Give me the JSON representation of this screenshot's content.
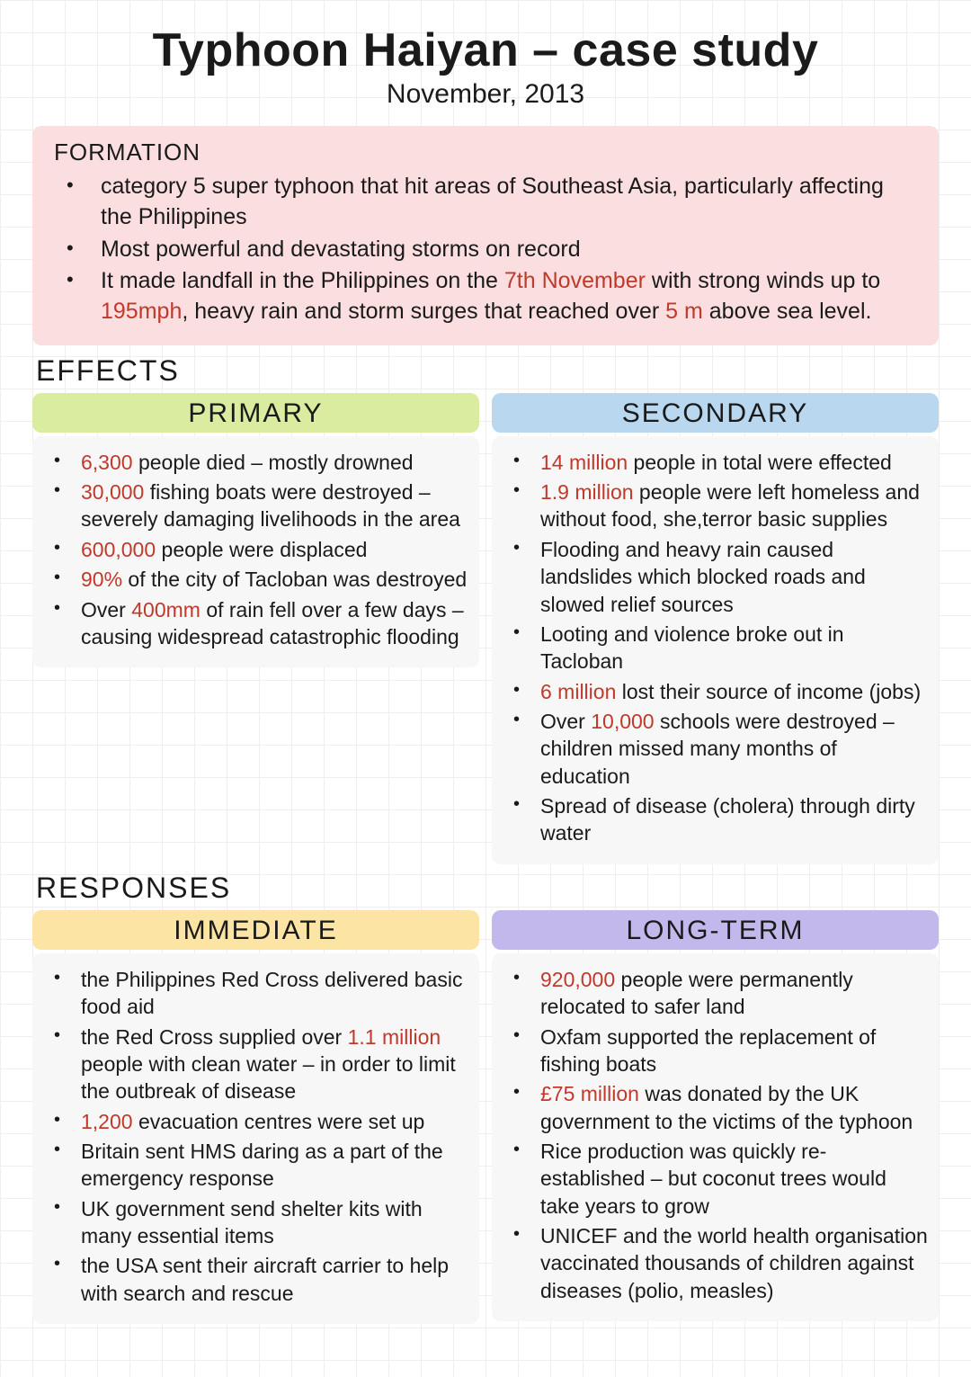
{
  "colors": {
    "highlight": "#c0392b",
    "formation_bg": "#fbdedf",
    "primary_header_bg": "#d9ec9f",
    "secondary_header_bg": "#b9d8ef",
    "immediate_header_bg": "#fce4a5",
    "longterm_header_bg": "#c2b8ec",
    "body_tint_primary": "#f7f7f7",
    "body_tint_secondary": "#f7f7f7",
    "body_tint_immediate": "#f7f7f7",
    "body_tint_longterm": "#f7f7f7"
  },
  "title": "Typhoon Haiyan – case study",
  "subtitle": "November, 2013",
  "formation": {
    "heading": "FORMATION",
    "items": [
      [
        {
          "t": "category 5 super typhoon that hit areas of Southeast Asia, particularly affecting the Philippines"
        }
      ],
      [
        {
          "t": "Most powerful and devastating  storms on record"
        }
      ],
      [
        {
          "t": "It made landfall in the Philippines on the "
        },
        {
          "t": "7th November",
          "hl": true
        },
        {
          "t": " with strong winds up to "
        },
        {
          "t": "195mph",
          "hl": true
        },
        {
          "t": ", heavy rain and storm surges that reached over "
        },
        {
          "t": "5 m",
          "hl": true
        },
        {
          "t": " above sea level."
        }
      ]
    ]
  },
  "effects": {
    "heading": "EFFECTS",
    "primary": {
      "label": "PRIMARY",
      "items": [
        [
          {
            "t": "6,300",
            "hl": true
          },
          {
            "t": " people died – mostly drowned"
          }
        ],
        [
          {
            "t": "30,000",
            "hl": true
          },
          {
            "t": " fishing boats were destroyed – severely damaging livelihoods in the area"
          }
        ],
        [
          {
            "t": "600,000",
            "hl": true
          },
          {
            "t": " people were displaced"
          }
        ],
        [
          {
            "t": "90%",
            "hl": true
          },
          {
            "t": " of the city of Tacloban was destroyed"
          }
        ],
        [
          {
            "t": "Over "
          },
          {
            "t": "400mm",
            "hl": true
          },
          {
            "t": " of rain fell over a few days – causing widespread catastrophic flooding"
          }
        ]
      ]
    },
    "secondary": {
      "label": "SECONDARY",
      "items": [
        [
          {
            "t": "14 million",
            "hl": true
          },
          {
            "t": " people in total were effected"
          }
        ],
        [
          {
            "t": "1.9 million",
            "hl": true
          },
          {
            "t": " people were left homeless and without food, she,terror basic supplies"
          }
        ],
        [
          {
            "t": "Flooding and heavy rain caused landslides which blocked roads and slowed relief sources"
          }
        ],
        [
          {
            "t": "Looting and violence broke out in Tacloban"
          }
        ],
        [
          {
            "t": "6 million",
            "hl": true
          },
          {
            "t": " lost their source of income (jobs)"
          }
        ],
        [
          {
            "t": "Over "
          },
          {
            "t": "10,000",
            "hl": true
          },
          {
            "t": " schools were destroyed – children missed many months of education"
          }
        ],
        [
          {
            "t": "Spread of disease (cholera) through dirty water"
          }
        ]
      ]
    }
  },
  "responses": {
    "heading": "RESPONSES",
    "immediate": {
      "label": "IMMEDIATE",
      "items": [
        [
          {
            "t": "the Philippines Red Cross delivered basic food aid"
          }
        ],
        [
          {
            "t": "the Red Cross supplied over "
          },
          {
            "t": "1.1 million",
            "hl": true
          },
          {
            "t": " people with clean water – in order to limit the outbreak of disease"
          }
        ],
        [
          {
            "t": "1,200",
            "hl": true
          },
          {
            "t": " evacuation centres were set up"
          }
        ],
        [
          {
            "t": "Britain sent HMS daring as a part of the emergency response"
          }
        ],
        [
          {
            "t": "UK government send shelter kits with many essential items"
          }
        ],
        [
          {
            "t": "the USA sent their aircraft carrier to help with search  and rescue"
          }
        ]
      ]
    },
    "longterm": {
      "label": "LONG-TERM",
      "items": [
        [
          {
            "t": "920,000",
            "hl": true
          },
          {
            "t": " people were permanently relocated to safer land"
          }
        ],
        [
          {
            "t": "Oxfam supported the replacement of fishing boats"
          }
        ],
        [
          {
            "t": "£75 million",
            "hl": true
          },
          {
            "t": " was donated by the UK government to the victims of the typhoon"
          }
        ],
        [
          {
            "t": "Rice production was quickly re-established – but coconut trees would take years to grow"
          }
        ],
        [
          {
            "t": "UNICEF and the world health organisation vaccinated thousands of children against diseases (polio, measles)"
          }
        ]
      ]
    }
  }
}
